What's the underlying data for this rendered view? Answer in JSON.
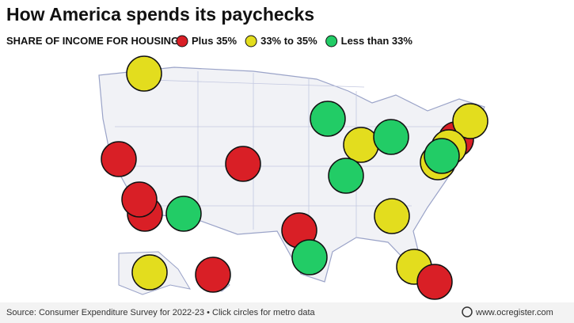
{
  "header": {
    "title": "How America spends its paychecks",
    "legend_label": "SHARE OF INCOME FOR HOUSING:",
    "legend": [
      {
        "label": "Plus 35%",
        "color": "#d91f26"
      },
      {
        "label": "33% to 35%",
        "color": "#e3dd1e"
      },
      {
        "label": "Less than 33%",
        "color": "#22cc66"
      }
    ]
  },
  "footer": {
    "source": "Source: Consumer Expenditure Survey for 2022-23 • Click circles for metro data",
    "watermark": "www.ocregister.com"
  }
}
